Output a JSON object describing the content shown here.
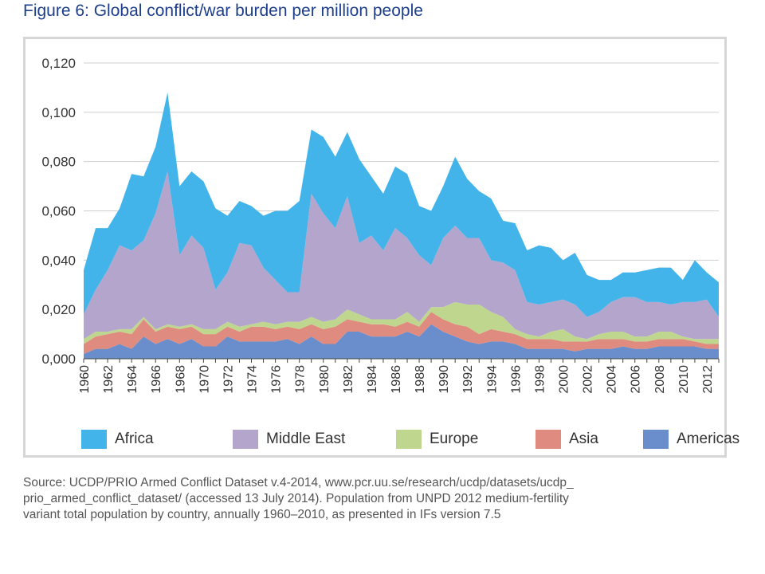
{
  "figure": {
    "title": "Figure 6: Global conflict/war burden per million people"
  },
  "source": {
    "lines": [
      "Source: UCDP/PRIO Armed Conflict Dataset v.4-2014, www.pcr.uu.se/research/ucdp/datasets/ucdp_",
      "prio_armed_conflict_dataset/ (accessed 13 July 2014). Population from UNPD 2012 medium-fertility",
      "variant total population by country, annually 1960–2010, as presented in IFs version 7.5"
    ]
  },
  "chart_data": {
    "type": "area",
    "stacked": true,
    "xlim": [
      1960,
      2013
    ],
    "ylim": [
      0,
      0.12
    ],
    "yticks": [
      0,
      0.02,
      0.04,
      0.06,
      0.08,
      0.1,
      0.12
    ],
    "ytick_labels": [
      "0,000",
      "0,020",
      "0,040",
      "0,060",
      "0,080",
      "0,100",
      "0,120"
    ],
    "xticks": [
      1960,
      1962,
      1964,
      1966,
      1968,
      1970,
      1972,
      1974,
      1976,
      1978,
      1980,
      1982,
      1984,
      1986,
      1988,
      1990,
      1992,
      1994,
      1996,
      1998,
      2000,
      2002,
      2004,
      2006,
      2008,
      2010,
      2012
    ],
    "xtick_labels": [
      "1960",
      "1962",
      "1964",
      "1966",
      "1968",
      "1970",
      "1972",
      "1974",
      "1976",
      "1978",
      "1980",
      "1982",
      "1984",
      "1986",
      "1988",
      "1990",
      "1992",
      "1994",
      "1996",
      "1998",
      "2000",
      "2002",
      "2004",
      "2006",
      "2008",
      "2010",
      "2012"
    ],
    "grid": "horizontal",
    "legend_position": "bottom",
    "x": [
      1960,
      1961,
      1962,
      1963,
      1964,
      1965,
      1966,
      1967,
      1968,
      1969,
      1970,
      1971,
      1972,
      1973,
      1974,
      1975,
      1976,
      1977,
      1978,
      1979,
      1980,
      1981,
      1982,
      1983,
      1984,
      1985,
      1986,
      1987,
      1988,
      1989,
      1990,
      1991,
      1992,
      1993,
      1994,
      1995,
      1996,
      1997,
      1998,
      1999,
      2000,
      2001,
      2002,
      2003,
      2004,
      2005,
      2006,
      2007,
      2008,
      2009,
      2010,
      2011,
      2012,
      2013
    ],
    "series_order_note": "stack order bottom to top",
    "series": [
      {
        "name": "Americas",
        "color": "#6a8ecb",
        "values": [
          0.002,
          0.004,
          0.004,
          0.006,
          0.004,
          0.009,
          0.006,
          0.008,
          0.006,
          0.008,
          0.005,
          0.005,
          0.009,
          0.007,
          0.007,
          0.007,
          0.007,
          0.008,
          0.006,
          0.009,
          0.006,
          0.006,
          0.011,
          0.011,
          0.009,
          0.009,
          0.009,
          0.011,
          0.009,
          0.014,
          0.011,
          0.009,
          0.007,
          0.006,
          0.007,
          0.007,
          0.006,
          0.004,
          0.004,
          0.004,
          0.004,
          0.003,
          0.004,
          0.004,
          0.004,
          0.005,
          0.004,
          0.004,
          0.005,
          0.005,
          0.005,
          0.005,
          0.004,
          0.004
        ]
      },
      {
        "name": "Asia",
        "color": "#e08b7f",
        "values": [
          0.004,
          0.005,
          0.006,
          0.005,
          0.006,
          0.007,
          0.005,
          0.005,
          0.006,
          0.005,
          0.005,
          0.005,
          0.004,
          0.004,
          0.006,
          0.006,
          0.005,
          0.005,
          0.006,
          0.005,
          0.006,
          0.007,
          0.005,
          0.004,
          0.005,
          0.005,
          0.004,
          0.004,
          0.004,
          0.005,
          0.005,
          0.005,
          0.006,
          0.004,
          0.005,
          0.004,
          0.004,
          0.004,
          0.004,
          0.004,
          0.003,
          0.004,
          0.003,
          0.004,
          0.004,
          0.003,
          0.003,
          0.003,
          0.003,
          0.003,
          0.003,
          0.002,
          0.002,
          0.002
        ]
      },
      {
        "name": "Europe",
        "color": "#bfd68f",
        "values": [
          0.002,
          0.002,
          0.001,
          0.001,
          0.002,
          0.001,
          0.001,
          0.001,
          0.001,
          0.001,
          0.002,
          0.002,
          0.002,
          0.002,
          0.001,
          0.002,
          0.002,
          0.002,
          0.003,
          0.003,
          0.003,
          0.003,
          0.004,
          0.003,
          0.002,
          0.002,
          0.003,
          0.004,
          0.002,
          0.002,
          0.005,
          0.009,
          0.009,
          0.012,
          0.007,
          0.006,
          0.002,
          0.002,
          0.001,
          0.003,
          0.005,
          0.002,
          0.001,
          0.002,
          0.003,
          0.003,
          0.002,
          0.002,
          0.003,
          0.003,
          0.001,
          0.001,
          0.002,
          0.002
        ]
      },
      {
        "name": "Middle East",
        "color": "#b4a5cc",
        "values": [
          0.01,
          0.017,
          0.025,
          0.034,
          0.032,
          0.031,
          0.047,
          0.062,
          0.029,
          0.036,
          0.033,
          0.016,
          0.02,
          0.034,
          0.032,
          0.022,
          0.018,
          0.012,
          0.012,
          0.05,
          0.044,
          0.037,
          0.046,
          0.029,
          0.034,
          0.028,
          0.037,
          0.03,
          0.027,
          0.017,
          0.028,
          0.031,
          0.027,
          0.027,
          0.021,
          0.022,
          0.024,
          0.013,
          0.013,
          0.012,
          0.012,
          0.013,
          0.009,
          0.009,
          0.012,
          0.014,
          0.016,
          0.014,
          0.012,
          0.011,
          0.014,
          0.015,
          0.016,
          0.009
        ]
      },
      {
        "name": "Africa",
        "color": "#43b4ea",
        "values": [
          0.018,
          0.025,
          0.017,
          0.015,
          0.031,
          0.026,
          0.027,
          0.032,
          0.028,
          0.026,
          0.027,
          0.033,
          0.023,
          0.017,
          0.016,
          0.021,
          0.028,
          0.033,
          0.037,
          0.026,
          0.031,
          0.029,
          0.026,
          0.034,
          0.024,
          0.023,
          0.025,
          0.026,
          0.02,
          0.022,
          0.021,
          0.028,
          0.024,
          0.019,
          0.025,
          0.017,
          0.019,
          0.021,
          0.024,
          0.022,
          0.016,
          0.021,
          0.017,
          0.013,
          0.009,
          0.01,
          0.01,
          0.013,
          0.014,
          0.015,
          0.009,
          0.017,
          0.011,
          0.014
        ]
      }
    ],
    "legend_order": [
      "Africa",
      "Middle East",
      "Europe",
      "Asia",
      "Americas"
    ]
  }
}
